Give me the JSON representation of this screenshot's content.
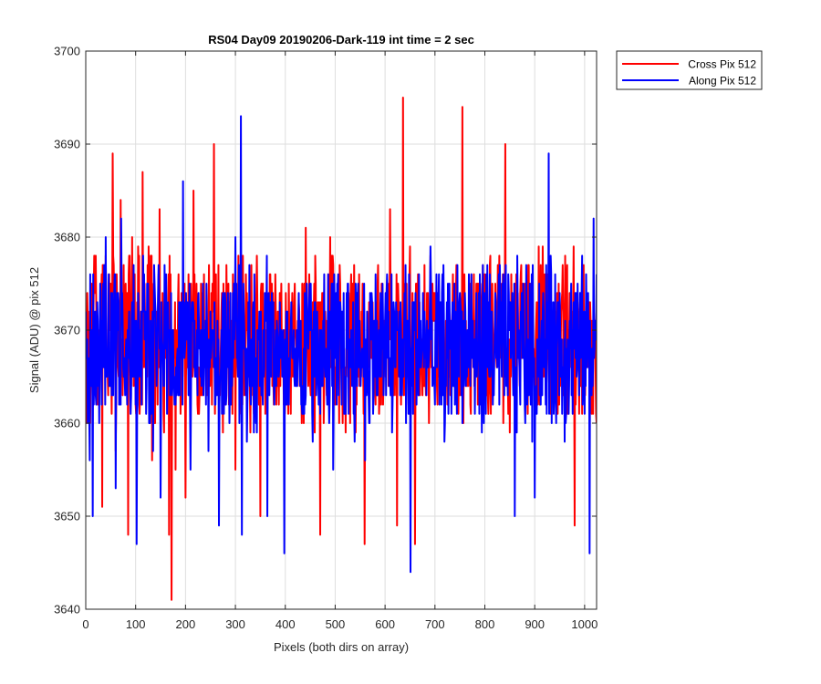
{
  "chart_data": {
    "type": "line",
    "title": "RS04 Day09 20190206-Dark-119 int time = 2 sec",
    "xlabel": "Pixels (both dirs on array)",
    "ylabel": "Signal (ADU) @ pix 512",
    "xlim": [
      0,
      1024
    ],
    "ylim": [
      3640,
      3700
    ],
    "xticks": [
      0,
      100,
      200,
      300,
      400,
      500,
      600,
      700,
      800,
      900,
      1000
    ],
    "xtick_labels": [
      "0",
      "100",
      "200",
      "300",
      "400",
      "500",
      "600",
      "700",
      "800",
      "900",
      "1000"
    ],
    "yticks": [
      3640,
      3650,
      3660,
      3670,
      3680,
      3690,
      3700
    ],
    "ytick_labels": [
      "3640",
      "3650",
      "3660",
      "3670",
      "3680",
      "3690",
      "3700"
    ],
    "grid": true,
    "legend_position": "outside-top-right",
    "series": [
      {
        "name": "Cross Pix 512",
        "color": "#ff0000",
        "x": [
          0,
          12,
          26,
          33,
          40,
          54,
          60,
          70,
          85,
          93,
          100,
          114,
          133,
          148,
          153,
          167,
          172,
          180,
          200,
          216,
          237,
          257,
          275,
          285,
          300,
          320,
          350,
          380,
          400,
          420,
          441,
          470,
          476,
          490,
          518,
          541,
          559,
          580,
          610,
          624,
          636,
          643,
          660,
          700,
          730,
          755,
          790,
          800,
          830,
          841,
          850,
          900,
          932,
          980,
          1010,
          1024
        ],
        "y": [
          3668,
          3675,
          3663,
          3651,
          3678,
          3689,
          3657,
          3684,
          3648,
          3680,
          3662,
          3687,
          3656,
          3683,
          3668,
          3648,
          3641,
          3655,
          3652,
          3685,
          3676,
          3690,
          3659,
          3672,
          3655,
          3664,
          3650,
          3676,
          3663,
          3670,
          3681,
          3648,
          3674,
          3680,
          3664,
          3659,
          3647,
          3665,
          3683,
          3649,
          3695,
          3675,
          3647,
          3674,
          3670,
          3694,
          3662,
          3676,
          3669,
          3690,
          3659,
          3663,
          3661,
          3649,
          3670,
          3660
        ]
      },
      {
        "name": "Along Pix 512",
        "color": "#0000ff",
        "x": [
          0,
          8,
          14,
          25,
          40,
          60,
          71,
          90,
          102,
          117,
          135,
          150,
          160,
          185,
          195,
          210,
          230,
          246,
          267,
          276,
          289,
          300,
          311,
          313,
          330,
          364,
          398,
          420,
          460,
          496,
          530,
          560,
          600,
          614,
          636,
          651,
          668,
          700,
          720,
          750,
          780,
          800,
          832,
          860,
          893,
          900,
          928,
          937,
          960,
          990,
          1010,
          1018,
          1024
        ],
        "y": [
          3672,
          3656,
          3650,
          3664,
          3680,
          3653,
          3682,
          3661,
          3647,
          3676,
          3657,
          3652,
          3675,
          3664,
          3686,
          3655,
          3665,
          3657,
          3649,
          3672,
          3664,
          3680,
          3693,
          3648,
          3667,
          3650,
          3646,
          3668,
          3673,
          3655,
          3669,
          3656,
          3671,
          3659,
          3668,
          3644,
          3676,
          3662,
          3660,
          3674,
          3661,
          3668,
          3673,
          3650,
          3665,
          3652,
          3689,
          3673,
          3658,
          3666,
          3646,
          3682,
          3676
        ]
      }
    ]
  }
}
